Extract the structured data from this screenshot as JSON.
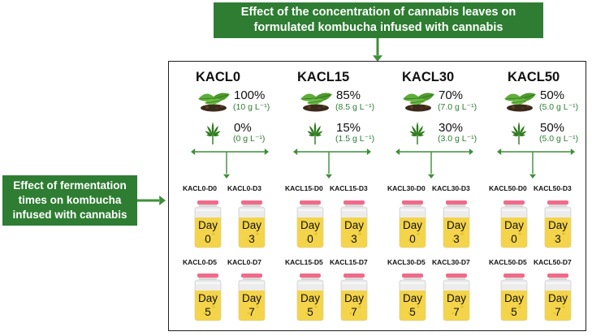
{
  "top_banner": {
    "line1": "Effect of the concentration of cannabis leaves on",
    "line2": "formulated kombucha infused with cannabis"
  },
  "side_banner": {
    "line1": "Effect of fermentation",
    "line2": "times on kombucha",
    "line3": "infused with cannabis"
  },
  "groups": [
    {
      "name": "KACL0",
      "tea_pct": "100%",
      "tea_conc": "(10 g L⁻¹)",
      "cannabis_pct": "0%",
      "cannabis_conc": "(0 g L⁻¹)",
      "jars": [
        {
          "label": "KACL0-D0",
          "day": "Day",
          "num": "0"
        },
        {
          "label": "KACL0-D3",
          "day": "Day",
          "num": "3"
        },
        {
          "label": "KACL0-D5",
          "day": "Day",
          "num": "5"
        },
        {
          "label": "KACL0-D7",
          "day": "Day",
          "num": "7"
        }
      ]
    },
    {
      "name": "KACL15",
      "tea_pct": "85%",
      "tea_conc": "(8.5 g L⁻¹)",
      "cannabis_pct": "15%",
      "cannabis_conc": "(1.5 g L⁻¹)",
      "jars": [
        {
          "label": "KACL15-D0",
          "day": "Day",
          "num": "0"
        },
        {
          "label": "KACL15-D3",
          "day": "Day",
          "num": "3"
        },
        {
          "label": "KACL15-D5",
          "day": "Day",
          "num": "5"
        },
        {
          "label": "KACL15-D7",
          "day": "Day",
          "num": "7"
        }
      ]
    },
    {
      "name": "KACL30",
      "tea_pct": "70%",
      "tea_conc": "(7.0 g L⁻¹)",
      "cannabis_pct": "30%",
      "cannabis_conc": "(3.0 g L⁻¹)",
      "jars": [
        {
          "label": "KACL30-D0",
          "day": "Day",
          "num": "0"
        },
        {
          "label": "KACL30-D3",
          "day": "Day",
          "num": "3"
        },
        {
          "label": "KACL30-D5",
          "day": "Day",
          "num": "5"
        },
        {
          "label": "KACL30-D7",
          "day": "Day",
          "num": "7"
        }
      ]
    },
    {
      "name": "KACL50",
      "tea_pct": "50%",
      "tea_conc": "(5.0 g L⁻¹)",
      "cannabis_pct": "50%",
      "cannabis_conc": "(5.0 g L⁻¹)",
      "jars": [
        {
          "label": "KACL50-D0",
          "day": "Day",
          "num": "0"
        },
        {
          "label": "KACL50-D3",
          "day": "Day",
          "num": "3"
        },
        {
          "label": "KACL50-D5",
          "day": "Day",
          "num": "5"
        },
        {
          "label": "KACL50-D7",
          "day": "Day",
          "num": "7"
        }
      ]
    }
  ],
  "colors": {
    "banner_green": "#2e7d32",
    "arrow_green": "#3f8f3a",
    "tea_leaf": "#4e9a2e",
    "cannabis_leaf": "#2f7a1f",
    "liquid": "#f4d44a",
    "cap": "#f06a8a",
    "jar_body": "#ececec"
  },
  "icons": {
    "tea": "tea-leaves-icon",
    "cannabis": "cannabis-leaf-icon",
    "jar": "kombucha-jar-icon"
  }
}
